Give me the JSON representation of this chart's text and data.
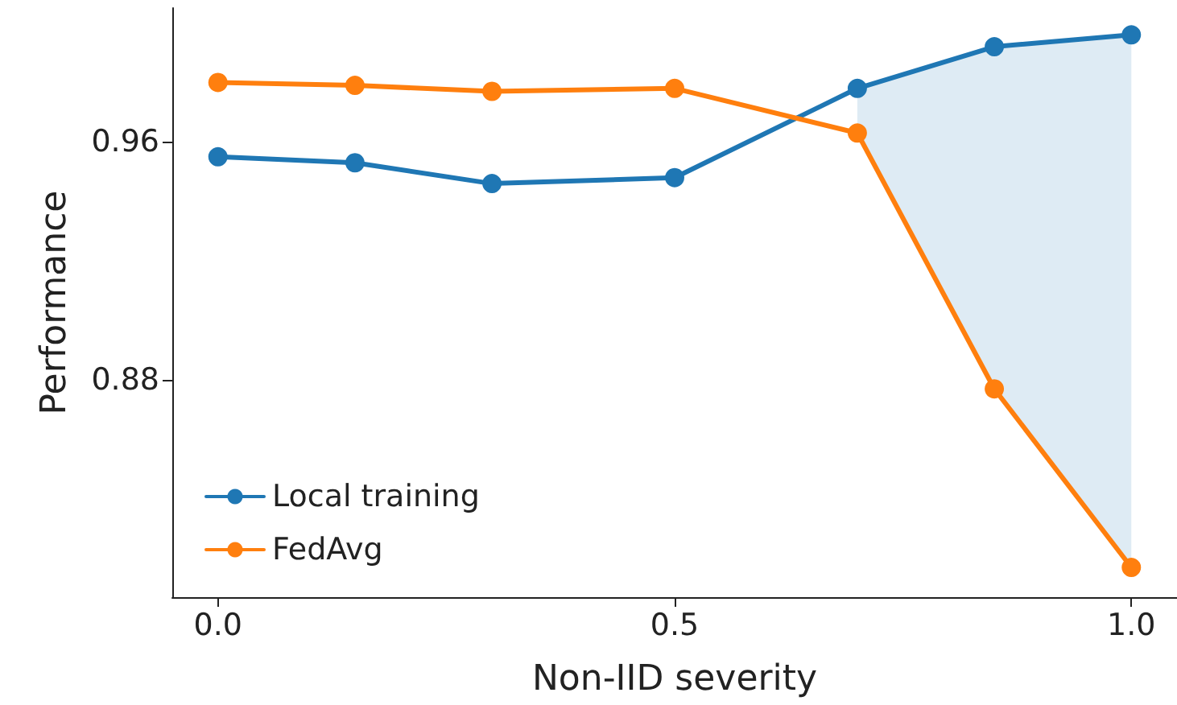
{
  "chart_data": {
    "type": "line",
    "xlabel": "Non-IID severity",
    "ylabel": "Performance",
    "x": [
      0,
      0.15,
      0.3,
      0.5,
      0.7,
      0.85,
      1.0
    ],
    "series": [
      {
        "name": "Local training",
        "color": "#1f77b4",
        "values": [
          0.955,
          0.953,
          0.946,
          0.948,
          0.978,
          0.992,
          0.996
        ],
        "lower": [
          null,
          null,
          null,
          null,
          0.963,
          0.877,
          0.817
        ],
        "upper": [
          null,
          null,
          null,
          null,
          0.978,
          0.992,
          0.996
        ]
      },
      {
        "name": "FedAvg",
        "color": "#ff7f0e",
        "values": [
          0.98,
          0.979,
          0.977,
          0.978,
          0.963,
          0.877,
          0.817
        ]
      }
    ],
    "xlim": [
      -0.05,
      1.05
    ],
    "ylim": [
      0.807,
      1.005
    ],
    "xticks": [
      {
        "value": 0,
        "label": "0.0"
      },
      {
        "value": 0.5,
        "label": "0.5"
      },
      {
        "value": 1,
        "label": "1.0"
      }
    ],
    "yticks": [
      0.88,
      0.96
    ],
    "grid": false,
    "legend": "bottom left",
    "marker": "circle",
    "line_style": "solid"
  }
}
